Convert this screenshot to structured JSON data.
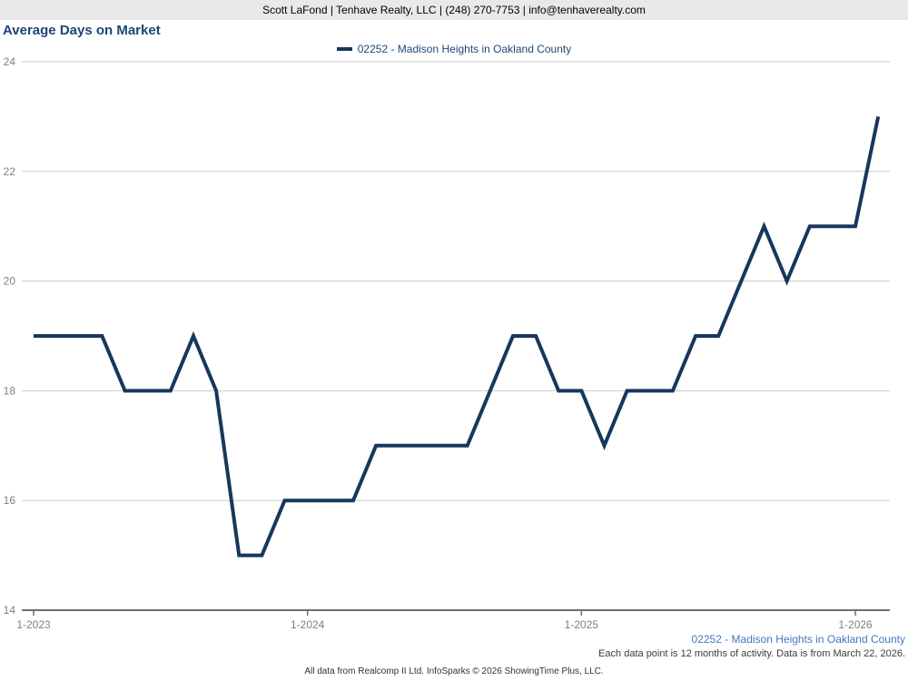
{
  "header": {
    "contact_line": "Scott LaFond | Tenhave Realty, LLC | (248) 270-7753 | info@tenhaverealty.com"
  },
  "footnotes": {
    "series_label": "02252 - Madison Heights in Oakland County",
    "data_note": "Each data point is 12 months of activity. Data is from March 22, 2026.",
    "source_note": "All data from Realcomp II Ltd. InfoSparks © 2026 ShowingTime Plus, LLC."
  },
  "colors": {
    "line": "#17375e",
    "title": "#1e4477",
    "legend_text": "#1d4776",
    "gridline": "#c9c9c9",
    "axis": "#6e6e6e",
    "tick_label": "#808080",
    "footnote_blue": "#4577bd",
    "header_bg": "#e9e9e9"
  },
  "chart_data": {
    "type": "line",
    "title": "Average Days on Market",
    "xlabel": "",
    "ylabel": "",
    "ylim": [
      14,
      24
    ],
    "yticks": [
      14,
      16,
      18,
      20,
      22,
      24
    ],
    "xticks": [
      "1-2023",
      "1-2024",
      "1-2025",
      "1-2026"
    ],
    "grid": true,
    "legend_position": "top-center",
    "series": [
      {
        "name": "02252 - Madison Heights in Oakland County",
        "color": "#17375e",
        "x": [
          "1-2023",
          "2-2023",
          "3-2023",
          "4-2023",
          "5-2023",
          "6-2023",
          "7-2023",
          "8-2023",
          "9-2023",
          "10-2023",
          "11-2023",
          "12-2023",
          "1-2024",
          "2-2024",
          "3-2024",
          "4-2024",
          "5-2024",
          "6-2024",
          "7-2024",
          "8-2024",
          "9-2024",
          "10-2024",
          "11-2024",
          "12-2024",
          "1-2025",
          "2-2025",
          "3-2025",
          "4-2025",
          "5-2025",
          "6-2025",
          "7-2025",
          "8-2025",
          "9-2025",
          "10-2025",
          "11-2025",
          "12-2025",
          "1-2026",
          "2-2026"
        ],
        "values": [
          19,
          19,
          19,
          19,
          18,
          18,
          18,
          19,
          18,
          15,
          15,
          16,
          16,
          16,
          16,
          17,
          17,
          17,
          17,
          17,
          18,
          19,
          19,
          18,
          18,
          17,
          18,
          18,
          18,
          19,
          19,
          20,
          21,
          20,
          21,
          21,
          21,
          23
        ]
      }
    ]
  }
}
